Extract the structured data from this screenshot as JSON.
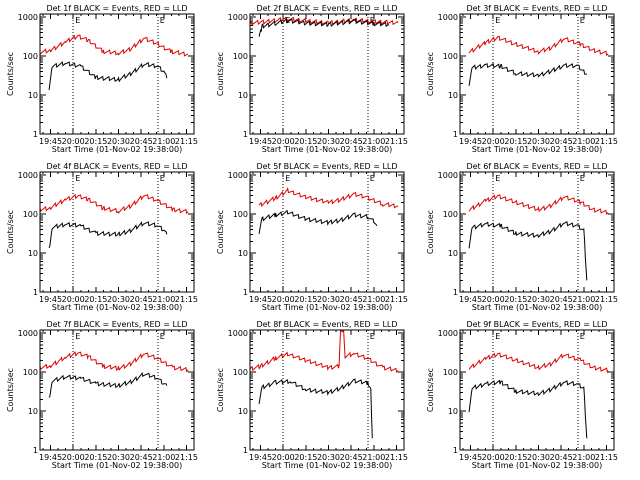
{
  "figure": {
    "ylabel": "Counts/sec",
    "xlabel": "Start Time (01-Nov-02 19:38:00)",
    "x_ticks": [
      "19:45",
      "20:00",
      "20:15",
      "20:30",
      "20:45",
      "21:00",
      "21:15"
    ],
    "y_ticks": [
      "1",
      "10",
      "100",
      "1000"
    ],
    "markers": [
      "E",
      "E"
    ],
    "colors": {
      "black": "#000000",
      "red": "#dd0000"
    }
  },
  "chart_data": [
    {
      "type": "line",
      "title": "Det 1f BLACK = Events, RED = LLD",
      "xlim": [
        "19:38",
        "21:20"
      ],
      "ylim": [
        1,
        1200
      ],
      "log_y": true,
      "marker_times": [
        "20:00",
        "20:56"
      ],
      "series": [
        {
          "label": "LLD",
          "color": "#dd0000",
          "points": [
            [
              "19:38",
              125
            ],
            [
              "19:45",
              140
            ],
            [
              "19:55",
              230
            ],
            [
              "20:03",
              330
            ],
            [
              "20:10",
              250
            ],
            [
              "20:20",
              130
            ],
            [
              "20:30",
              120
            ],
            [
              "20:38",
              150
            ],
            [
              "20:47",
              290
            ],
            [
              "20:55",
              210
            ],
            [
              "21:05",
              130
            ],
            [
              "21:16",
              110
            ]
          ]
        },
        {
          "label": "Events",
          "color": "#000000",
          "points": [
            [
              "19:44",
              15
            ],
            [
              "19:46",
              55
            ],
            [
              "19:55",
              65
            ],
            [
              "20:05",
              55
            ],
            [
              "20:15",
              28
            ],
            [
              "20:30",
              25
            ],
            [
              "20:38",
              35
            ],
            [
              "20:47",
              62
            ],
            [
              "20:56",
              55
            ],
            [
              "21:00",
              40
            ],
            [
              "21:02",
              27
            ]
          ]
        }
      ]
    },
    {
      "type": "line",
      "title": "Det 2f BLACK = Events, RED = LLD",
      "xlim": [
        "19:38",
        "21:20"
      ],
      "ylim": [
        1,
        1200
      ],
      "log_y": true,
      "marker_times": [
        "20:00",
        "20:56"
      ],
      "series": [
        {
          "label": "LLD",
          "color": "#dd0000",
          "points": [
            [
              "19:38",
              700
            ],
            [
              "19:50",
              780
            ],
            [
              "20:03",
              900
            ],
            [
              "20:15",
              800
            ],
            [
              "20:30",
              700
            ],
            [
              "20:47",
              850
            ],
            [
              "21:00",
              760
            ],
            [
              "21:16",
              720
            ]
          ]
        },
        {
          "label": "Events",
          "color": "#000000",
          "points": [
            [
              "19:44",
              300
            ],
            [
              "19:46",
              580
            ],
            [
              "19:55",
              700
            ],
            [
              "20:03",
              820
            ],
            [
              "20:15",
              700
            ],
            [
              "20:30",
              650
            ],
            [
              "20:47",
              780
            ],
            [
              "21:00",
              680
            ],
            [
              "21:10",
              650
            ]
          ]
        }
      ]
    },
    {
      "type": "line",
      "title": "Det 3f BLACK = Events, RED = LLD",
      "xlim": [
        "19:38",
        "21:20"
      ],
      "ylim": [
        1,
        1200
      ],
      "log_y": true,
      "marker_times": [
        "20:00",
        "20:56"
      ],
      "series": [
        {
          "label": "LLD",
          "color": "#dd0000",
          "points": [
            [
              "19:44",
              125
            ],
            [
              "19:55",
              220
            ],
            [
              "20:03",
              300
            ],
            [
              "20:15",
              200
            ],
            [
              "20:30",
              130
            ],
            [
              "20:38",
              160
            ],
            [
              "20:47",
              280
            ],
            [
              "20:58",
              200
            ],
            [
              "21:06",
              140
            ],
            [
              "21:16",
              115
            ]
          ]
        },
        {
          "label": "Events",
          "color": "#000000",
          "points": [
            [
              "19:44",
              18
            ],
            [
              "19:46",
              50
            ],
            [
              "19:55",
              58
            ],
            [
              "20:05",
              55
            ],
            [
              "20:15",
              36
            ],
            [
              "20:30",
              32
            ],
            [
              "20:38",
              40
            ],
            [
              "20:47",
              58
            ],
            [
              "20:56",
              55
            ],
            [
              "21:00",
              40
            ],
            [
              "21:02",
              35
            ]
          ]
        }
      ]
    },
    {
      "type": "line",
      "title": "Det 4f BLACK = Events, RED = LLD",
      "xlim": [
        "19:38",
        "21:20"
      ],
      "ylim": [
        1,
        1200
      ],
      "log_y": true,
      "marker_times": [
        "20:00",
        "20:56"
      ],
      "series": [
        {
          "label": "LLD",
          "color": "#dd0000",
          "points": [
            [
              "19:38",
              130
            ],
            [
              "19:45",
              145
            ],
            [
              "19:55",
              240
            ],
            [
              "20:03",
              290
            ],
            [
              "20:10",
              240
            ],
            [
              "20:20",
              140
            ],
            [
              "20:30",
              120
            ],
            [
              "20:38",
              160
            ],
            [
              "20:47",
              300
            ],
            [
              "20:56",
              220
            ],
            [
              "21:06",
              130
            ],
            [
              "21:16",
              115
            ]
          ]
        },
        {
          "label": "Events",
          "color": "#000000",
          "points": [
            [
              "19:44",
              12
            ],
            [
              "19:46",
              45
            ],
            [
              "19:55",
              55
            ],
            [
              "20:05",
              50
            ],
            [
              "20:15",
              32
            ],
            [
              "20:30",
              30
            ],
            [
              "20:38",
              38
            ],
            [
              "20:47",
              60
            ],
            [
              "20:56",
              50
            ],
            [
              "21:00",
              38
            ],
            [
              "21:02",
              30
            ]
          ]
        }
      ]
    },
    {
      "type": "line",
      "title": "Det 5f BLACK = Events, RED = LLD",
      "xlim": [
        "19:38",
        "21:20"
      ],
      "ylim": [
        1,
        1200
      ],
      "log_y": true,
      "marker_times": [
        "20:00",
        "20:56"
      ],
      "series": [
        {
          "label": "LLD",
          "color": "#dd0000",
          "points": [
            [
              "19:44",
              165
            ],
            [
              "19:55",
              260
            ],
            [
              "20:03",
              400
            ],
            [
              "20:15",
              270
            ],
            [
              "20:30",
              200
            ],
            [
              "20:38",
              230
            ],
            [
              "20:47",
              330
            ],
            [
              "20:56",
              260
            ],
            [
              "21:06",
              180
            ],
            [
              "21:16",
              160
            ]
          ]
        },
        {
          "label": "Events",
          "color": "#000000",
          "points": [
            [
              "19:44",
              30
            ],
            [
              "19:46",
              75
            ],
            [
              "19:55",
              95
            ],
            [
              "20:03",
              110
            ],
            [
              "20:15",
              75
            ],
            [
              "20:30",
              60
            ],
            [
              "20:38",
              70
            ],
            [
              "20:47",
              95
            ],
            [
              "20:56",
              85
            ],
            [
              "21:00",
              65
            ],
            [
              "21:02",
              50
            ]
          ]
        }
      ]
    },
    {
      "type": "line",
      "title": "Det 6f BLACK = Events, RED = LLD",
      "xlim": [
        "19:38",
        "21:20"
      ],
      "ylim": [
        1,
        1200
      ],
      "log_y": true,
      "marker_times": [
        "20:00",
        "20:56"
      ],
      "series": [
        {
          "label": "LLD",
          "color": "#dd0000",
          "points": [
            [
              "19:44",
              125
            ],
            [
              "19:55",
              220
            ],
            [
              "20:03",
              290
            ],
            [
              "20:15",
              200
            ],
            [
              "20:30",
              130
            ],
            [
              "20:38",
              160
            ],
            [
              "20:47",
              280
            ],
            [
              "20:58",
              200
            ],
            [
              "21:06",
              130
            ],
            [
              "21:16",
              110
            ]
          ]
        },
        {
          "label": "Events",
          "color": "#000000",
          "points": [
            [
              "19:44",
              14
            ],
            [
              "19:46",
              45
            ],
            [
              "19:55",
              55
            ],
            [
              "20:05",
              50
            ],
            [
              "20:15",
              32
            ],
            [
              "20:30",
              28
            ],
            [
              "20:38",
              36
            ],
            [
              "20:47",
              58
            ],
            [
              "20:56",
              50
            ],
            [
              "21:00",
              38
            ],
            [
              "21:02",
              2
            ]
          ]
        }
      ]
    },
    {
      "type": "line",
      "title": "Det 7f BLACK = Events, RED = LLD",
      "xlim": [
        "19:38",
        "21:20"
      ],
      "ylim": [
        1,
        1200
      ],
      "log_y": true,
      "marker_times": [
        "20:00",
        "20:56"
      ],
      "series": [
        {
          "label": "LLD",
          "color": "#dd0000",
          "points": [
            [
              "19:38",
              130
            ],
            [
              "19:45",
              145
            ],
            [
              "19:55",
              240
            ],
            [
              "20:03",
              310
            ],
            [
              "20:10",
              250
            ],
            [
              "20:20",
              140
            ],
            [
              "20:30",
              125
            ],
            [
              "20:38",
              160
            ],
            [
              "20:47",
              300
            ],
            [
              "20:56",
              220
            ],
            [
              "21:06",
              130
            ],
            [
              "21:16",
              115
            ]
          ]
        },
        {
          "label": "Events",
          "color": "#000000",
          "points": [
            [
              "19:44",
              20
            ],
            [
              "19:46",
              60
            ],
            [
              "19:55",
              75
            ],
            [
              "20:05",
              70
            ],
            [
              "20:15",
              50
            ],
            [
              "20:30",
              45
            ],
            [
              "20:38",
              55
            ],
            [
              "20:47",
              90
            ],
            [
              "20:56",
              70
            ],
            [
              "21:00",
              50
            ],
            [
              "21:02",
              45
            ]
          ]
        }
      ]
    },
    {
      "type": "line",
      "title": "Det 8f BLACK = Events, RED = LLD",
      "xlim": [
        "19:38",
        "21:20"
      ],
      "ylim": [
        1,
        1200
      ],
      "log_y": true,
      "marker_times": [
        "20:00",
        "20:56"
      ],
      "series": [
        {
          "label": "LLD",
          "color": "#dd0000",
          "points": [
            [
              "19:38",
              120
            ],
            [
              "19:45",
              140
            ],
            [
              "19:55",
              230
            ],
            [
              "20:03",
              290
            ],
            [
              "20:15",
              200
            ],
            [
              "20:30",
              130
            ],
            [
              "20:37",
              140
            ],
            [
              "20:38",
              1200
            ],
            [
              "20:40",
              1200
            ],
            [
              "20:41",
              250
            ],
            [
              "20:47",
              300
            ],
            [
              "20:56",
              220
            ],
            [
              "21:06",
              130
            ],
            [
              "21:16",
              110
            ]
          ]
        },
        {
          "label": "Events",
          "color": "#000000",
          "points": [
            [
              "19:44",
              15
            ],
            [
              "19:46",
              40
            ],
            [
              "19:55",
              55
            ],
            [
              "20:05",
              58
            ],
            [
              "20:15",
              35
            ],
            [
              "20:30",
              30
            ],
            [
              "20:38",
              38
            ],
            [
              "20:47",
              60
            ],
            [
              "20:56",
              52
            ],
            [
              "20:58",
              40
            ],
            [
              "20:59",
              2
            ]
          ]
        }
      ]
    },
    {
      "type": "line",
      "title": "Det 9f BLACK = Events, RED = LLD",
      "xlim": [
        "19:38",
        "21:20"
      ],
      "ylim": [
        1,
        1200
      ],
      "log_y": true,
      "marker_times": [
        "20:00",
        "20:56"
      ],
      "series": [
        {
          "label": "LLD",
          "color": "#dd0000",
          "points": [
            [
              "19:44",
              125
            ],
            [
              "19:55",
              220
            ],
            [
              "20:03",
              290
            ],
            [
              "20:15",
              200
            ],
            [
              "20:30",
              130
            ],
            [
              "20:38",
              160
            ],
            [
              "20:47",
              280
            ],
            [
              "20:58",
              200
            ],
            [
              "21:06",
              130
            ],
            [
              "21:16",
              110
            ]
          ]
        },
        {
          "label": "Events",
          "color": "#000000",
          "points": [
            [
              "19:44",
              10
            ],
            [
              "19:46",
              38
            ],
            [
              "19:55",
              50
            ],
            [
              "20:05",
              55
            ],
            [
              "20:15",
              32
            ],
            [
              "20:30",
              28
            ],
            [
              "20:38",
              35
            ],
            [
              "20:47",
              55
            ],
            [
              "20:56",
              48
            ],
            [
              "21:00",
              38
            ],
            [
              "21:02",
              2
            ]
          ]
        }
      ]
    }
  ]
}
